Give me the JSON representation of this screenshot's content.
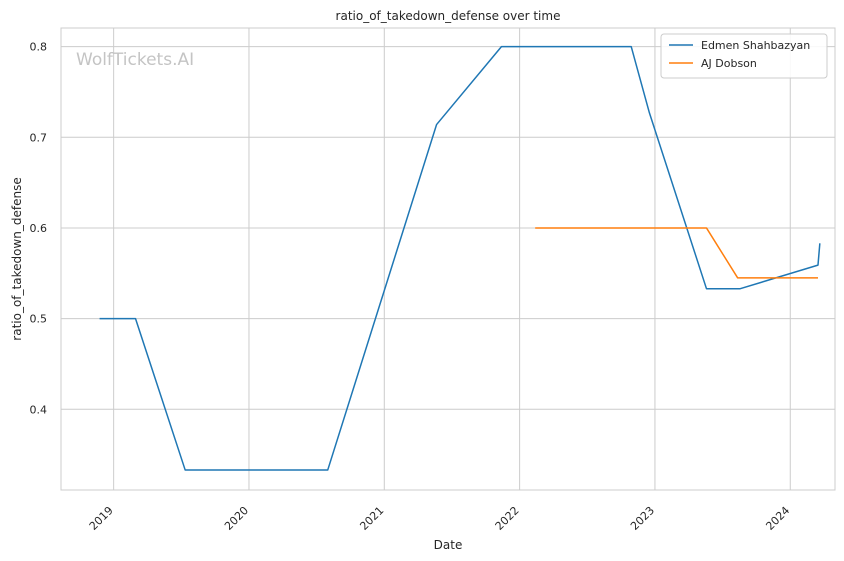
{
  "chart_data": {
    "type": "line",
    "title": "ratio_of_takedown_defense over time",
    "xlabel": "Date",
    "ylabel": "ratio_of_takedown_defense",
    "watermark": "WolfTickets.AI",
    "x_ticks": [
      "2019",
      "2020",
      "2021",
      "2022",
      "2023",
      "2024"
    ],
    "y_ticks": [
      "0.4",
      "0.5",
      "0.6",
      "0.7",
      "0.8"
    ],
    "xlim": [
      "2018-08-12",
      "2024-05-01"
    ],
    "ylim": [
      0.311,
      0.8205
    ],
    "grid": true,
    "legend_position": "top-right",
    "series": [
      {
        "name": "Edmen Shahbazyan",
        "color": "#1f77b4",
        "points": [
          {
            "x": "2018-11-24",
            "y": 0.5
          },
          {
            "x": "2019-03-01",
            "y": 0.5
          },
          {
            "x": "2019-07-13",
            "y": 0.333
          },
          {
            "x": "2020-08-01",
            "y": 0.333
          },
          {
            "x": "2021-05-22",
            "y": 0.714
          },
          {
            "x": "2021-11-13",
            "y": 0.8
          },
          {
            "x": "2022-10-29",
            "y": 0.8
          },
          {
            "x": "2022-12-17",
            "y": 0.727
          },
          {
            "x": "2023-05-20",
            "y": 0.533
          },
          {
            "x": "2023-08-19",
            "y": 0.533
          },
          {
            "x": "2024-03-16",
            "y": 0.559
          },
          {
            "x": "2024-03-21",
            "y": 0.583
          }
        ]
      },
      {
        "name": "AJ Dobson",
        "color": "#ff7f0e",
        "points": [
          {
            "x": "2022-02-12",
            "y": 0.6
          },
          {
            "x": "2023-05-20",
            "y": 0.6
          },
          {
            "x": "2023-08-12",
            "y": 0.545
          },
          {
            "x": "2024-03-16",
            "y": 0.545
          }
        ]
      }
    ]
  }
}
